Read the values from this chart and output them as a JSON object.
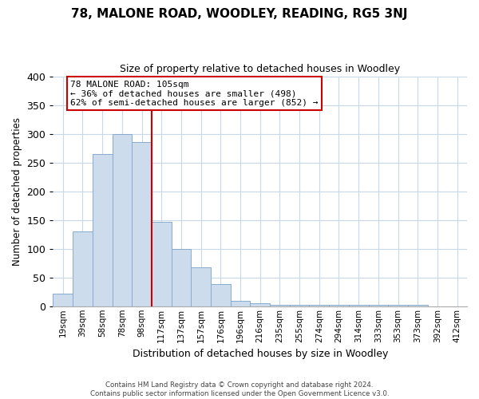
{
  "title": "78, MALONE ROAD, WOODLEY, READING, RG5 3NJ",
  "subtitle": "Size of property relative to detached houses in Woodley",
  "xlabel": "Distribution of detached houses by size in Woodley",
  "ylabel": "Number of detached properties",
  "bar_labels": [
    "19sqm",
    "39sqm",
    "58sqm",
    "78sqm",
    "98sqm",
    "117sqm",
    "137sqm",
    "157sqm",
    "176sqm",
    "196sqm",
    "216sqm",
    "235sqm",
    "255sqm",
    "274sqm",
    "294sqm",
    "314sqm",
    "333sqm",
    "353sqm",
    "373sqm",
    "392sqm",
    "412sqm"
  ],
  "bar_values": [
    22,
    130,
    265,
    300,
    285,
    147,
    100,
    68,
    38,
    9,
    5,
    3,
    2,
    2,
    2,
    2,
    2,
    2,
    2,
    0,
    0
  ],
  "bar_color": "#ccdcec",
  "bar_edge_color": "#88aacc",
  "vline_x": 4.5,
  "vline_color": "#cc0000",
  "ylim": [
    0,
    400
  ],
  "yticks": [
    0,
    50,
    100,
    150,
    200,
    250,
    300,
    350,
    400
  ],
  "annotation_title": "78 MALONE ROAD: 105sqm",
  "annotation_line1": "← 36% of detached houses are smaller (498)",
  "annotation_line2": "62% of semi-detached houses are larger (852) →",
  "annotation_box_color": "#ffffff",
  "annotation_box_edge": "#cc0000",
  "footer1": "Contains HM Land Registry data © Crown copyright and database right 2024.",
  "footer2": "Contains public sector information licensed under the Open Government Licence v3.0."
}
